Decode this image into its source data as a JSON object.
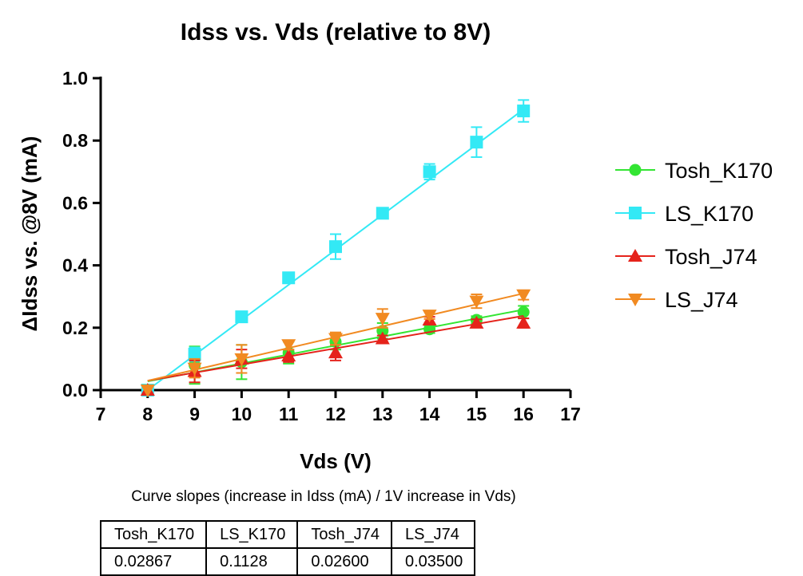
{
  "chart_data": {
    "type": "scatter",
    "title": "Idss vs. Vds (relative to 8V)",
    "xlabel": "Vds (V)",
    "ylabel": "ΔIdss vs. @8V (mA)",
    "xlim": [
      7,
      17
    ],
    "ylim": [
      0,
      1.0
    ],
    "x_ticks": [
      "7",
      "8",
      "9",
      "10",
      "11",
      "12",
      "13",
      "14",
      "15",
      "16",
      "17"
    ],
    "y_ticks": [
      "0.0",
      "0.2",
      "0.4",
      "0.6",
      "0.8",
      "1.0"
    ],
    "legend_position": "right",
    "series": [
      {
        "name": "Tosh_K170",
        "color": "#33e533",
        "marker": "circle",
        "x": [
          8,
          9,
          10,
          11,
          12,
          13,
          14,
          15,
          16
        ],
        "values": [
          0.0,
          0.08,
          0.09,
          0.12,
          0.155,
          0.19,
          0.195,
          0.225,
          0.25
        ],
        "err": [
          0.0,
          0.06,
          0.055,
          0.035,
          0.025,
          0.025,
          0.012,
          0.012,
          0.02
        ],
        "fit": [
          [
            8,
            0.028
          ],
          [
            16,
            0.258
          ]
        ]
      },
      {
        "name": "LS_K170",
        "color": "#33e9f5",
        "marker": "square",
        "x": [
          8,
          9,
          10,
          11,
          12,
          13,
          14,
          15,
          16
        ],
        "values": [
          0.0,
          0.115,
          0.235,
          0.36,
          0.46,
          0.567,
          0.7,
          0.795,
          0.895
        ],
        "err": [
          0.0,
          0.022,
          0.015,
          0.01,
          0.04,
          0.01,
          0.025,
          0.048,
          0.035
        ],
        "fit": [
          [
            8,
            0.0
          ],
          [
            16,
            0.9
          ]
        ]
      },
      {
        "name": "Tosh_J74",
        "color": "#e5231b",
        "marker": "triangle-up",
        "x": [
          8,
          9,
          10,
          11,
          12,
          13,
          14,
          15,
          16
        ],
        "values": [
          0.0,
          0.06,
          0.1,
          0.11,
          0.12,
          0.165,
          0.225,
          0.215,
          0.215
        ],
        "err": [
          0.0,
          0.035,
          0.03,
          0.02,
          0.025,
          0.01,
          0.01,
          0.012,
          0.015
        ],
        "fit": [
          [
            8,
            0.03
          ],
          [
            16,
            0.238
          ]
        ]
      },
      {
        "name": "LS_J74",
        "color": "#f18a21",
        "marker": "triangle-down",
        "x": [
          8,
          9,
          10,
          11,
          12,
          13,
          14,
          15,
          16
        ],
        "values": [
          0.0,
          0.07,
          0.1,
          0.145,
          0.165,
          0.23,
          0.24,
          0.285,
          0.305
        ],
        "err": [
          0.0,
          0.03,
          0.045,
          0.015,
          0.02,
          0.03,
          0.012,
          0.022,
          0.015
        ],
        "fit": [
          [
            8,
            0.03
          ],
          [
            16,
            0.31
          ]
        ]
      }
    ]
  },
  "slope_caption": "Curve slopes (increase in Idss (mA) / 1V increase in Vds)",
  "slope_table": {
    "headers": [
      "Tosh_K170",
      "LS_K170",
      "Tosh_J74",
      "LS_J74"
    ],
    "values": [
      "0.02867",
      "0.1128",
      "0.02600",
      "0.03500"
    ]
  }
}
